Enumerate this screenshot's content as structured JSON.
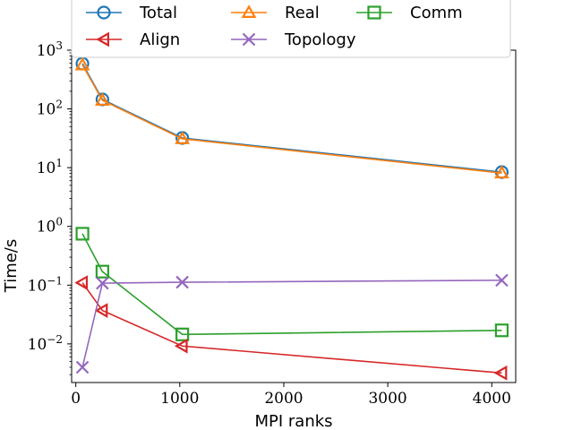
{
  "chart_data": {
    "type": "line",
    "xlabel": "MPI ranks",
    "ylabel": "Time/s",
    "xlim": [
      -40,
      4230
    ],
    "ylim": [
      0.0022,
      1000
    ],
    "yscale": "log",
    "x_ticks": [
      0,
      1000,
      2000,
      3000,
      4000
    ],
    "x_tick_labels": [
      "0",
      "1000",
      "2000",
      "3000",
      "4000"
    ],
    "y_ticks": [
      0.01,
      0.1,
      1,
      10,
      100,
      1000
    ],
    "y_tick_bases": [
      "10",
      "10",
      "10",
      "10",
      "10",
      "10"
    ],
    "y_tick_exps": [
      "−2",
      "−1",
      "0",
      "1",
      "2",
      "3"
    ],
    "grid": false,
    "legend_position": "top, above plot",
    "x": [
      64,
      256,
      1024,
      4096
    ],
    "series": [
      {
        "name": "Total",
        "color": "#1f77b4",
        "marker": "circle",
        "values": [
          590,
          145,
          32,
          8.4
        ]
      },
      {
        "name": "Real",
        "color": "#ff7f0e",
        "marker": "triangle-up",
        "values": [
          560,
          140,
          31,
          8.1
        ]
      },
      {
        "name": "Comm",
        "color": "#2ca02c",
        "marker": "square",
        "values": [
          0.75,
          0.17,
          0.0145,
          0.017
        ]
      },
      {
        "name": "Align",
        "color": "#d62728",
        "marker": "triangle-left",
        "values": [
          0.11,
          0.037,
          0.0092,
          0.0032
        ]
      },
      {
        "name": "Topology",
        "color": "#9467bd",
        "marker": "x",
        "values": [
          0.004,
          0.108,
          0.112,
          0.121
        ]
      }
    ]
  }
}
